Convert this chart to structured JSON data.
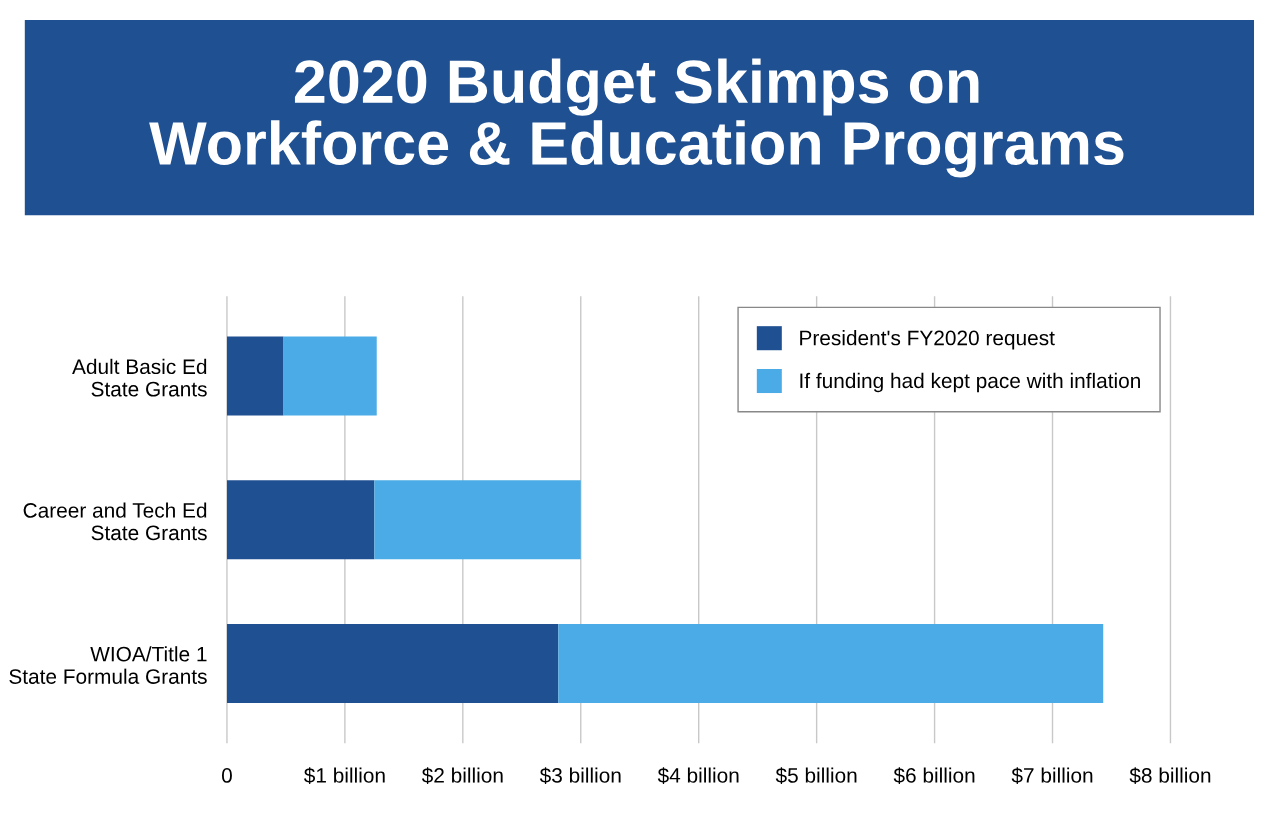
{
  "chart_data": {
    "type": "bar",
    "orientation": "horizontal",
    "stacked": true,
    "title": "2020 Budget Skimps on\nWorkforce & Education Programs",
    "categories": [
      "Adult Basic Ed\nState Grants",
      "Career and Tech Ed\nState Grants",
      "WIOA/Title 1\nState Formula Grants"
    ],
    "series": [
      {
        "name": "President's FY2020 request",
        "color": "#1f5192",
        "values": [
          0.48,
          1.25,
          2.81
        ]
      },
      {
        "name": "If funding had kept pace with inflation",
        "color": "#4aabe6",
        "values": [
          0.79,
          1.75,
          4.62
        ]
      }
    ],
    "xlim": [
      0,
      8
    ],
    "xticks": [
      0,
      {
        "value": 1,
        "label": "$1 billion"
      },
      {
        "value": 2,
        "label": "$2 billion"
      },
      {
        "value": 3,
        "label": "$3 billion"
      },
      {
        "value": 4,
        "label": "$4 billion"
      },
      {
        "value": 5,
        "label": "$5 billion"
      },
      {
        "value": 6,
        "label": "$6 billion"
      },
      {
        "value": 7,
        "label": "$7 billion"
      },
      {
        "value": 8,
        "label": "$8 billion"
      }
    ],
    "grid": "x",
    "legend": "top right"
  }
}
